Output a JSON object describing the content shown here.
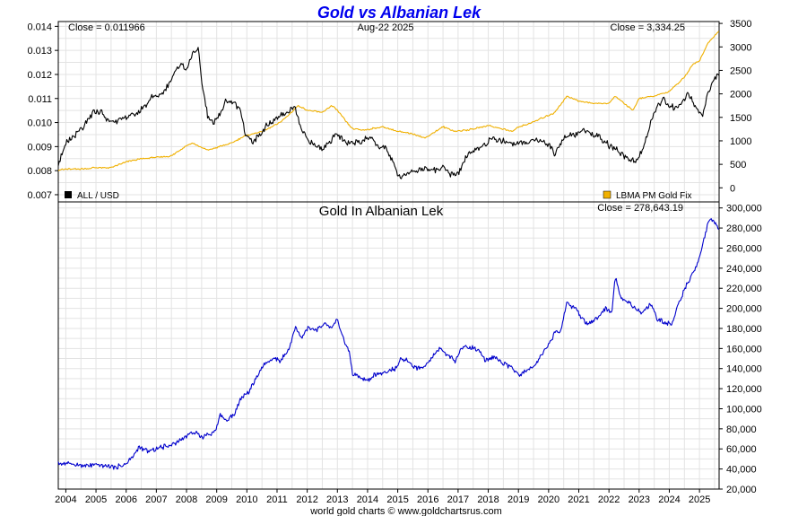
{
  "chart_data": [
    {
      "type": "line",
      "title": "Gold vs Albanian Lek",
      "date_label": "Aug-22  2025",
      "left_close": "Close = 0.011966",
      "right_close": "Close = 3,334.25",
      "x_ticks": [
        "2004",
        "2005",
        "2006",
        "2007",
        "2008",
        "2009",
        "2010",
        "2011",
        "2012",
        "2013",
        "2014",
        "2015",
        "2016",
        "2017",
        "2018",
        "2019",
        "2020",
        "2021",
        "2022",
        "2023",
        "2024",
        "2025"
      ],
      "left_axis": {
        "ylim": [
          0.0067,
          0.0142
        ],
        "ticks": [
          "0.007",
          "0.008",
          "0.009",
          "0.010",
          "0.011",
          "0.012",
          "0.013",
          "0.014"
        ]
      },
      "right_axis": {
        "ylim": [
          -300,
          3540
        ],
        "ticks": [
          "0",
          "500",
          "1000",
          "1500",
          "2000",
          "2500",
          "3000",
          "3500"
        ]
      },
      "legend": {
        "placement": "bottom",
        "left_label": "ALL / USD",
        "right_label": "LBMA PM Gold Fix"
      },
      "series": [
        {
          "name": "ALL / USD",
          "axis": "left",
          "color": "#000000",
          "x": [
            2003.75,
            2004.0,
            2004.3,
            2004.6,
            2004.9,
            2005.2,
            2005.3,
            2005.6,
            2005.9,
            2006.1,
            2006.4,
            2006.7,
            2006.9,
            2007.2,
            2007.5,
            2007.8,
            2008.0,
            2008.2,
            2008.4,
            2008.5,
            2008.7,
            2008.8,
            2008.95,
            2009.1,
            2009.3,
            2009.6,
            2009.8,
            2009.95,
            2010.2,
            2010.4,
            2010.6,
            2010.8,
            2011.0,
            2011.3,
            2011.6,
            2011.8,
            2012.0,
            2012.3,
            2012.5,
            2012.8,
            2013.0,
            2013.3,
            2013.6,
            2013.9,
            2014.1,
            2014.4,
            2014.6,
            2014.9,
            2015.05,
            2015.3,
            2015.6,
            2015.9,
            2016.2,
            2016.5,
            2016.8,
            2017.0,
            2017.3,
            2017.6,
            2017.9,
            2018.1,
            2018.3,
            2018.6,
            2018.9,
            2019.2,
            2019.5,
            2019.8,
            2020.1,
            2020.2,
            2020.4,
            2020.6,
            2020.9,
            2021.1,
            2021.4,
            2021.7,
            2021.95,
            2022.2,
            2022.5,
            2022.8,
            2022.9,
            2023.2,
            2023.5,
            2023.8,
            2024.0,
            2024.3,
            2024.6,
            2024.9,
            2025.1,
            2025.3,
            2025.5,
            2025.64
          ],
          "y": [
            0.0083,
            0.0091,
            0.0095,
            0.0098,
            0.0104,
            0.0105,
            0.0101,
            0.0101,
            0.0101,
            0.0103,
            0.0104,
            0.0108,
            0.0111,
            0.0112,
            0.0118,
            0.0125,
            0.0122,
            0.0129,
            0.013,
            0.0117,
            0.0103,
            0.01,
            0.0101,
            0.0103,
            0.0109,
            0.0108,
            0.0105,
            0.0095,
            0.0092,
            0.0094,
            0.0098,
            0.01,
            0.0102,
            0.0104,
            0.0106,
            0.0097,
            0.0093,
            0.009,
            0.0089,
            0.0093,
            0.0095,
            0.0091,
            0.0092,
            0.0093,
            0.0094,
            0.009,
            0.0089,
            0.0082,
            0.0077,
            0.0079,
            0.008,
            0.0081,
            0.008,
            0.0081,
            0.0078,
            0.0079,
            0.0086,
            0.0089,
            0.0091,
            0.0093,
            0.0093,
            0.0092,
            0.0091,
            0.0092,
            0.0093,
            0.0092,
            0.009,
            0.0087,
            0.0091,
            0.0095,
            0.0095,
            0.0097,
            0.0095,
            0.0094,
            0.0091,
            0.0089,
            0.0086,
            0.0084,
            0.0083,
            0.0092,
            0.0104,
            0.011,
            0.0107,
            0.0106,
            0.0112,
            0.0106,
            0.0103,
            0.0113,
            0.0119,
            0.011966
          ]
        },
        {
          "name": "LBMA PM Gold Fix",
          "axis": "right",
          "color": "#f0b000",
          "x": [
            2003.75,
            2004.0,
            2004.5,
            2005.0,
            2005.5,
            2006.0,
            2006.5,
            2007.0,
            2007.5,
            2008.0,
            2008.2,
            2008.7,
            2008.95,
            2009.5,
            2009.9,
            2010.5,
            2011.0,
            2011.3,
            2011.7,
            2012.0,
            2012.5,
            2012.8,
            2013.0,
            2013.3,
            2013.5,
            2013.9,
            2014.5,
            2015.0,
            2015.5,
            2015.9,
            2016.5,
            2016.9,
            2017.5,
            2018.0,
            2018.5,
            2018.8,
            2019.0,
            2019.5,
            2019.8,
            2020.2,
            2020.6,
            2021.0,
            2021.5,
            2022.0,
            2022.2,
            2022.8,
            2023.0,
            2023.5,
            2024.0,
            2024.5,
            2024.8,
            2025.0,
            2025.3,
            2025.64
          ],
          "y": [
            380,
            400,
            400,
            430,
            430,
            550,
            620,
            650,
            680,
            900,
            950,
            800,
            850,
            950,
            1100,
            1200,
            1350,
            1500,
            1750,
            1650,
            1600,
            1750,
            1650,
            1400,
            1250,
            1230,
            1300,
            1200,
            1150,
            1060,
            1300,
            1200,
            1250,
            1330,
            1250,
            1200,
            1290,
            1400,
            1490,
            1600,
            1950,
            1850,
            1800,
            1800,
            1950,
            1650,
            1900,
            1950,
            2050,
            2350,
            2650,
            2700,
            3100,
            3334.25
          ]
        }
      ]
    },
    {
      "type": "line",
      "title": "Gold In Albanian Lek",
      "close": "Close = 278,643.19",
      "x_ticks": [
        "2004",
        "2005",
        "2006",
        "2007",
        "2008",
        "2009",
        "2010",
        "2011",
        "2012",
        "2013",
        "2014",
        "2015",
        "2016",
        "2017",
        "2018",
        "2019",
        "2020",
        "2021",
        "2022",
        "2023",
        "2024",
        "2025"
      ],
      "ylim": [
        20000,
        306000
      ],
      "y_ticks": [
        "20,000",
        "40,000",
        "60,000",
        "80,000",
        "100,000",
        "120,000",
        "140,000",
        "160,000",
        "180,000",
        "200,000",
        "220,000",
        "240,000",
        "260,000",
        "280,000",
        "300,000"
      ],
      "series": [
        {
          "color": "#0000cc",
          "x": [
            2003.75,
            2004.2,
            2004.6,
            2004.9,
            2005.3,
            2005.6,
            2005.9,
            2006.1,
            2006.3,
            2006.4,
            2006.8,
            2007.1,
            2007.4,
            2007.7,
            2008.0,
            2008.2,
            2008.5,
            2008.8,
            2009.0,
            2009.1,
            2009.3,
            2009.6,
            2009.8,
            2010.1,
            2010.3,
            2010.6,
            2010.9,
            2011.1,
            2011.4,
            2011.6,
            2011.8,
            2012.0,
            2012.3,
            2012.6,
            2012.8,
            2013.0,
            2013.2,
            2013.4,
            2013.5,
            2013.8,
            2014.0,
            2014.3,
            2014.6,
            2014.9,
            2015.1,
            2015.3,
            2015.6,
            2015.9,
            2016.1,
            2016.4,
            2016.6,
            2016.9,
            2017.1,
            2017.4,
            2017.7,
            2017.9,
            2018.2,
            2018.5,
            2018.8,
            2019.0,
            2019.3,
            2019.6,
            2019.8,
            2020.1,
            2020.2,
            2020.4,
            2020.6,
            2020.9,
            2021.1,
            2021.3,
            2021.6,
            2021.9,
            2022.1,
            2022.2,
            2022.4,
            2022.7,
            2022.9,
            2023.1,
            2023.4,
            2023.6,
            2023.9,
            2024.1,
            2024.3,
            2024.6,
            2024.8,
            2025.0,
            2025.2,
            2025.35,
            2025.5,
            2025.64
          ],
          "y": [
            46000,
            45000,
            43000,
            44000,
            43000,
            42000,
            44000,
            48000,
            56000,
            61000,
            58000,
            61000,
            63000,
            67000,
            73000,
            77000,
            72000,
            75000,
            80000,
            96000,
            88000,
            95000,
            110000,
            118000,
            130000,
            145000,
            150000,
            148000,
            158000,
            182000,
            170000,
            180000,
            178000,
            185000,
            180000,
            188000,
            170000,
            155000,
            135000,
            130000,
            128000,
            135000,
            136000,
            140000,
            150000,
            148000,
            140000,
            142000,
            150000,
            160000,
            155000,
            148000,
            160000,
            162000,
            158000,
            148000,
            152000,
            145000,
            140000,
            133000,
            138000,
            145000,
            155000,
            168000,
            175000,
            178000,
            205000,
            200000,
            190000,
            185000,
            190000,
            200000,
            195000,
            232000,
            210000,
            205000,
            200000,
            195000,
            205000,
            190000,
            185000,
            185000,
            205000,
            225000,
            235000,
            250000,
            275000,
            290000,
            285000,
            278643.19
          ]
        }
      ]
    }
  ],
  "footer": "world gold charts © www.goldchartsrus.com"
}
